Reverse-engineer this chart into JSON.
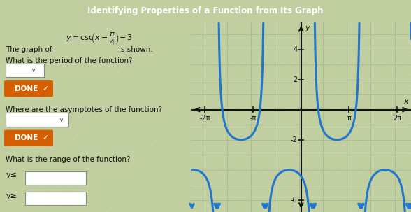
{
  "xlim": [
    -7.2,
    7.2
  ],
  "ylim": [
    -6.8,
    5.8
  ],
  "xtick_vals": [
    -6.283185307,
    -3.141592654,
    3.141592654,
    6.283185307
  ],
  "xtick_labels": [
    "-2π",
    "-π",
    "π",
    "2π"
  ],
  "ytick_vals": [
    -6,
    -2,
    2,
    4
  ],
  "ytick_labels": [
    "-6",
    "-2",
    "2",
    "4"
  ],
  "curve_color": "#2277cc",
  "curve_linewidth": 2.2,
  "phase_shift": 0.7853981634,
  "vertical_shift": -3,
  "bg_left_color": "#c8d8a8",
  "bg_graph_color": "#c8d8a0",
  "stripe_color1": "#c8d4a0",
  "stripe_color2": "#d8e8b0",
  "grid_color": "#b0b8a0",
  "axis_color": "#111111",
  "done_bg": "#d45f00",
  "left_bg": "#bfcfa0"
}
